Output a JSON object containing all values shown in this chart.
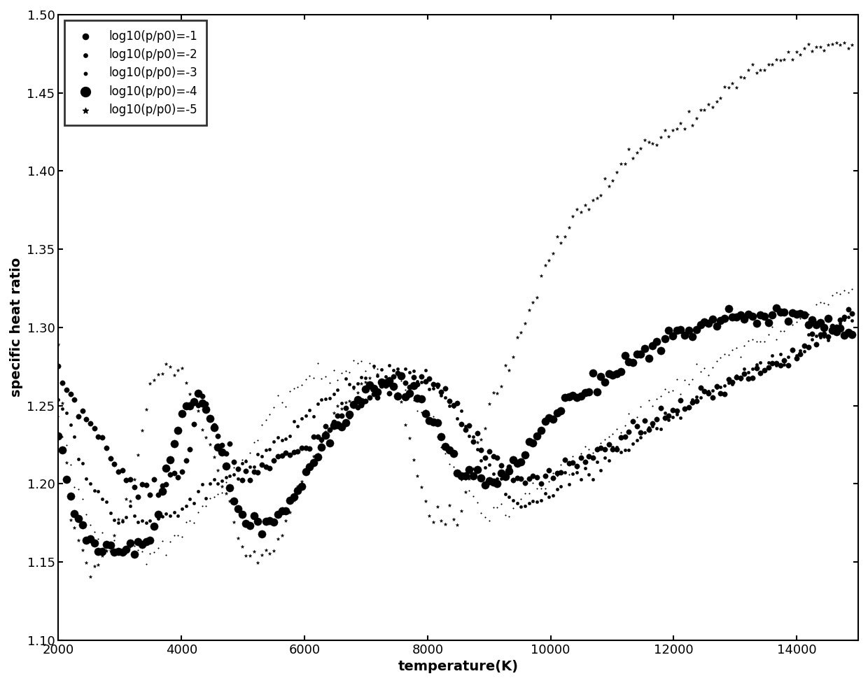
{
  "title": "",
  "xlabel": "temperature(K)",
  "ylabel": "specific heat ratio",
  "xlim": [
    2000,
    15000
  ],
  "ylim": [
    1.1,
    1.5
  ],
  "xticks": [
    2000,
    4000,
    6000,
    8000,
    10000,
    12000,
    14000
  ],
  "yticks": [
    1.1,
    1.15,
    1.2,
    1.25,
    1.3,
    1.35,
    1.4,
    1.45,
    1.5
  ],
  "legend_labels": [
    "log10(p/p0)=-1",
    "log10(p/p0)=-2",
    "log10(p/p0)=-3",
    "log10(p/p0)=-4",
    "log10(p/p0)=-5"
  ],
  "background_color": "white"
}
